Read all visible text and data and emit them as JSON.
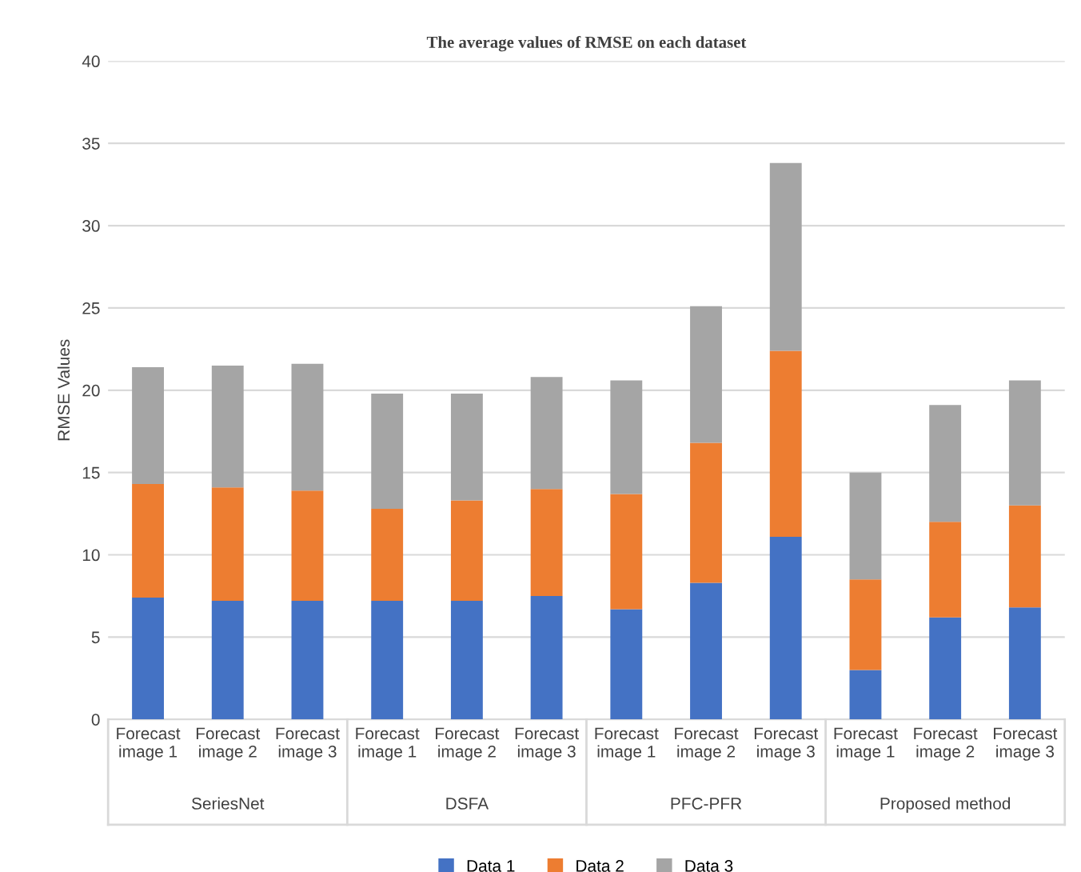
{
  "chart_data": {
    "type": "bar",
    "stacked": true,
    "title": "The average values of RMSE on each dataset",
    "ylabel": "RMSE Values",
    "categories": [
      "Forecast image 1",
      "Forecast image 2",
      "Forecast image 3",
      "Forecast image 1",
      "Forecast image 2",
      "Forecast image 3",
      "Forecast image 1",
      "Forecast image 2",
      "Forecast image 3",
      "Forecast image 1",
      "Forecast image 2",
      "Forecast image 3"
    ],
    "annotations": [
      "SeriesNet",
      "DSFA",
      "PFC-PFR",
      "Proposed method"
    ],
    "series": [
      {
        "name": "Data 1",
        "color": "#4472c4",
        "values": [
          7.4,
          7.2,
          7.2,
          7.2,
          7.2,
          7.5,
          6.7,
          8.3,
          11.1,
          3.0,
          6.2,
          6.8
        ]
      },
      {
        "name": "Data 2",
        "color": "#ed7d31",
        "values": [
          6.9,
          6.9,
          6.7,
          5.6,
          6.1,
          6.5,
          7.0,
          8.5,
          11.3,
          5.5,
          5.8,
          6.2
        ]
      },
      {
        "name": "Data 3",
        "color": "#a5a5a5",
        "values": [
          7.1,
          7.4,
          7.7,
          7.0,
          6.5,
          6.8,
          6.9,
          8.3,
          11.4,
          6.5,
          7.1,
          7.6
        ]
      }
    ],
    "ylim": [
      0,
      40
    ],
    "yticks": [
      0,
      5,
      10,
      15,
      20,
      25,
      30,
      35,
      40
    ],
    "grid": "y",
    "legend": "bottom"
  }
}
